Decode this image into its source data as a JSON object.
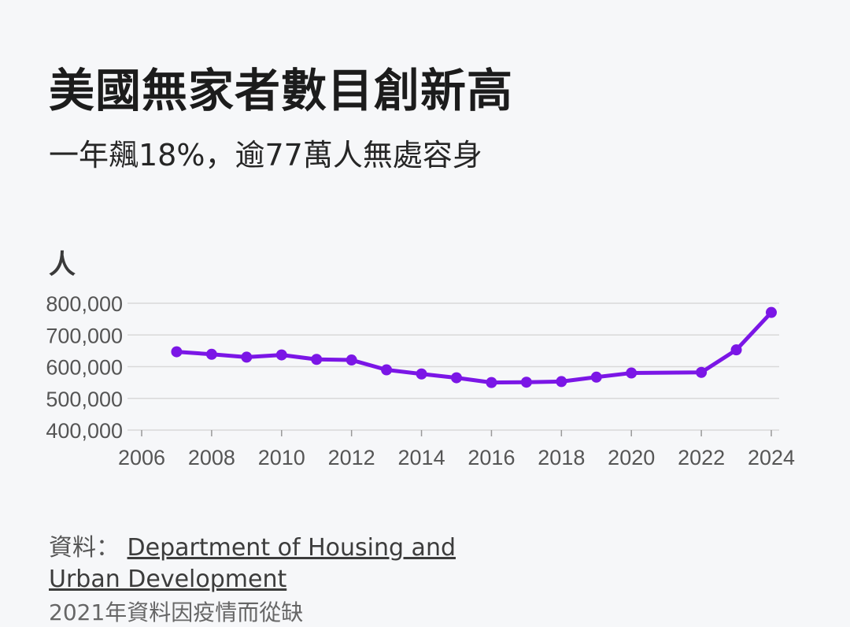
{
  "header": {
    "title": "美國無家者數目創新高",
    "subtitle": "一年飆18%，逾77萬人無處容身"
  },
  "source": {
    "label": "資料：",
    "text": "Department of Housing and Urban Development",
    "note": "2021年資料因疫情而從缺"
  },
  "colors": {
    "line": "#7b16e6",
    "grid": "#d9d9d9",
    "axis_text": "#555555"
  },
  "chart_data": {
    "type": "line",
    "ylabel": "人",
    "xlabel": "",
    "x_ticks": [
      2006,
      2008,
      2010,
      2012,
      2014,
      2016,
      2018,
      2020,
      2022,
      2024
    ],
    "y_ticks": [
      400000,
      500000,
      600000,
      700000,
      800000
    ],
    "y_tick_labels": [
      "400,000",
      "500,000",
      "600,000",
      "700,000",
      "800,000"
    ],
    "xlim": [
      2006,
      2024
    ],
    "ylim": [
      400000,
      800000
    ],
    "grid": true,
    "series": [
      {
        "x": [
          2007,
          2008,
          2009,
          2010,
          2011,
          2012,
          2013,
          2014,
          2015,
          2016,
          2017,
          2018,
          2019,
          2020,
          2022,
          2023,
          2024
        ],
        "values": [
          647000,
          639000,
          630000,
          637000,
          623000,
          621000,
          590000,
          577000,
          565000,
          550000,
          551000,
          553000,
          567000,
          580000,
          582000,
          653000,
          771000
        ]
      }
    ]
  }
}
